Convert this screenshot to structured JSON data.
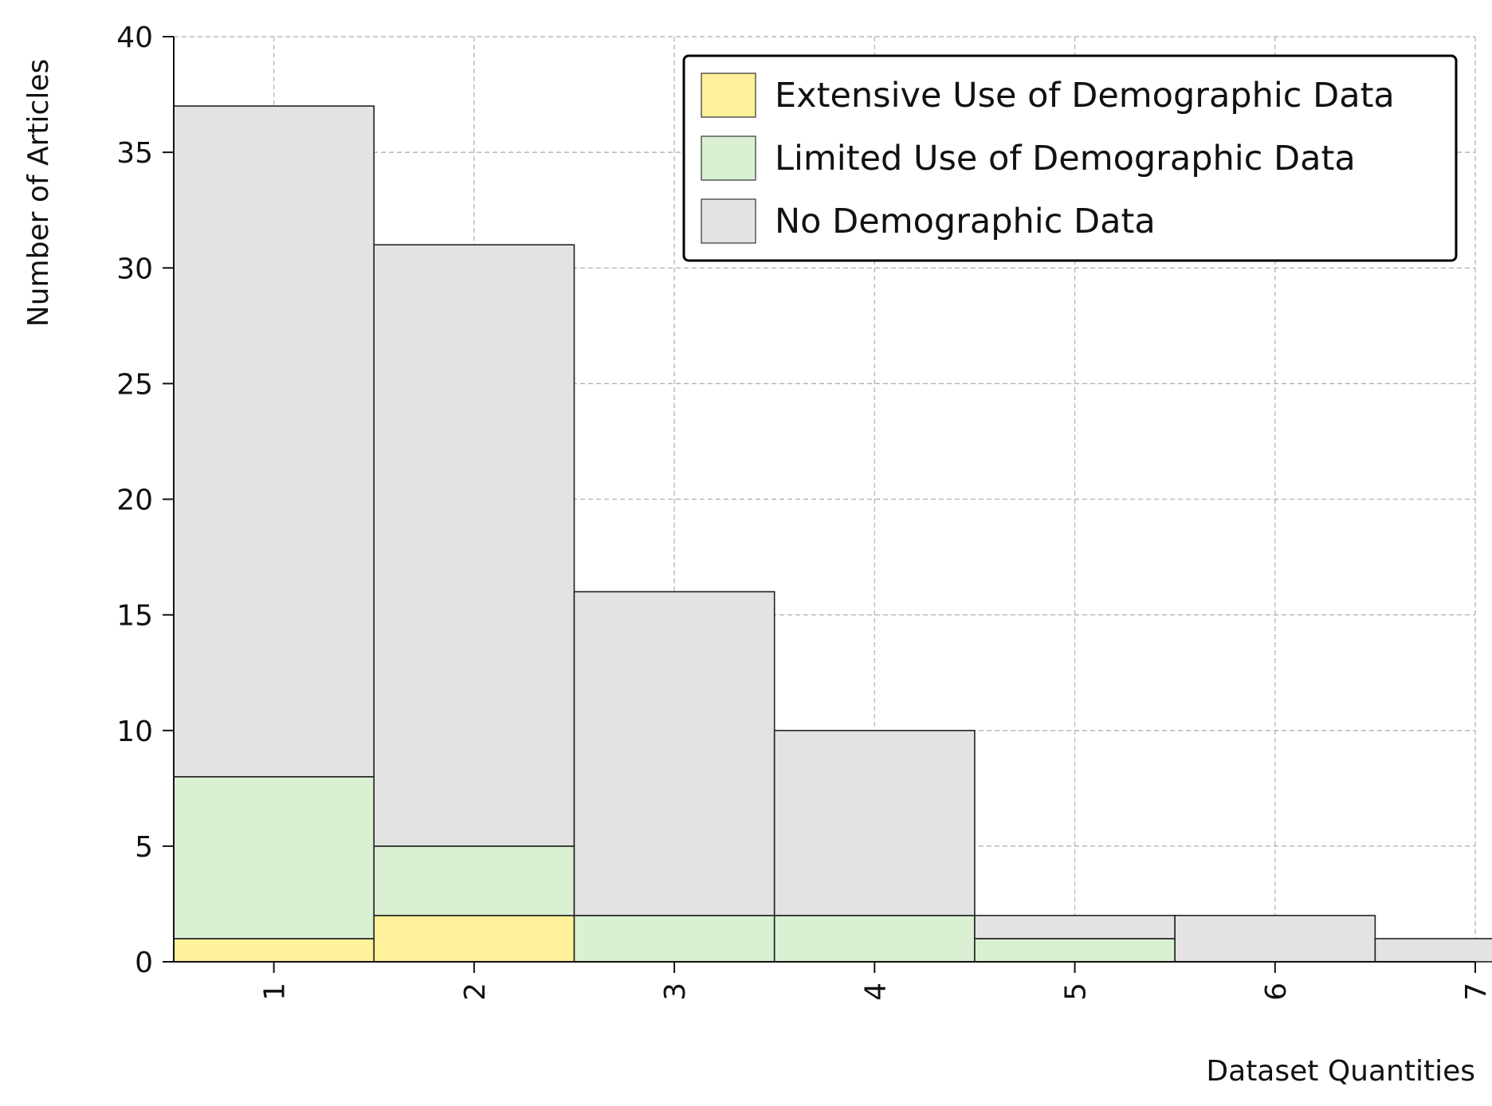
{
  "chart_data": {
    "type": "bar",
    "stacked": true,
    "categories": [
      "1",
      "2",
      "3",
      "4",
      "5",
      "6",
      "7"
    ],
    "series": [
      {
        "name": "Extensive Use of Demographic Data",
        "color": "#fff09a",
        "values": [
          1,
          2,
          0,
          0,
          0,
          0,
          0
        ]
      },
      {
        "name": "Limited Use of Demographic Data",
        "color": "#d9f0d3",
        "values": [
          7,
          3,
          2,
          2,
          1,
          0,
          0
        ]
      },
      {
        "name": "No Demographic Data",
        "color": "#e3e3e3",
        "values": [
          29,
          26,
          14,
          8,
          1,
          2,
          1
        ]
      }
    ],
    "xlabel": "Dataset Quantities",
    "ylabel": "Number of Articles",
    "ylim": [
      0,
      40
    ],
    "yticks": [
      0,
      5,
      10,
      15,
      20,
      25,
      30,
      35,
      40
    ],
    "grid": true,
    "legend_position": "top-right"
  }
}
